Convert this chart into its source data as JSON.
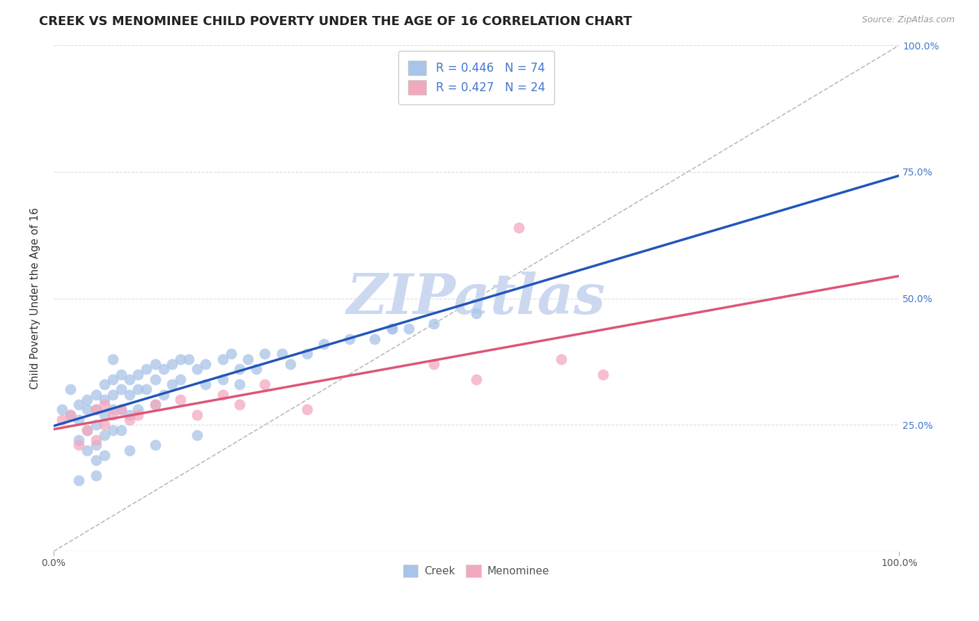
{
  "title": "CREEK VS MENOMINEE CHILD POVERTY UNDER THE AGE OF 16 CORRELATION CHART",
  "source": "Source: ZipAtlas.com",
  "ylabel": "Child Poverty Under the Age of 16",
  "creek_R": 0.446,
  "creek_N": 74,
  "menominee_R": 0.427,
  "menominee_N": 24,
  "creek_color": "#a8c4e8",
  "menominee_color": "#f4a8be",
  "creek_line_color": "#2255bb",
  "menominee_line_color": "#dd5577",
  "diagonal_color": "#aaaaaa",
  "background_color": "#ffffff",
  "grid_color": "#dddddd",
  "ytick_color": "#4477cc",
  "xtick_color": "#555555",
  "title_color": "#222222",
  "ylabel_color": "#333333",
  "watermark": "ZIPatlas",
  "watermark_color": "#ccd8f0",
  "creek_x": [
    0.01,
    0.02,
    0.02,
    0.03,
    0.03,
    0.03,
    0.04,
    0.04,
    0.04,
    0.04,
    0.05,
    0.05,
    0.05,
    0.05,
    0.05,
    0.06,
    0.06,
    0.06,
    0.06,
    0.06,
    0.07,
    0.07,
    0.07,
    0.07,
    0.08,
    0.08,
    0.08,
    0.08,
    0.09,
    0.09,
    0.09,
    0.1,
    0.1,
    0.1,
    0.11,
    0.11,
    0.12,
    0.12,
    0.12,
    0.13,
    0.13,
    0.14,
    0.14,
    0.15,
    0.15,
    0.16,
    0.17,
    0.18,
    0.18,
    0.2,
    0.2,
    0.21,
    0.22,
    0.23,
    0.24,
    0.25,
    0.27,
    0.28,
    0.3,
    0.32,
    0.35,
    0.38,
    0.4,
    0.42,
    0.45,
    0.5,
    0.03,
    0.05,
    0.07,
    0.09,
    0.12,
    0.17,
    0.22,
    0.4
  ],
  "creek_y": [
    0.28,
    0.32,
    0.27,
    0.29,
    0.26,
    0.22,
    0.3,
    0.28,
    0.24,
    0.2,
    0.31,
    0.28,
    0.25,
    0.21,
    0.18,
    0.33,
    0.3,
    0.27,
    0.23,
    0.19,
    0.34,
    0.31,
    0.28,
    0.24,
    0.35,
    0.32,
    0.28,
    0.24,
    0.34,
    0.31,
    0.27,
    0.35,
    0.32,
    0.28,
    0.36,
    0.32,
    0.37,
    0.34,
    0.29,
    0.36,
    0.31,
    0.37,
    0.33,
    0.38,
    0.34,
    0.38,
    0.36,
    0.37,
    0.33,
    0.38,
    0.34,
    0.39,
    0.36,
    0.38,
    0.36,
    0.39,
    0.39,
    0.37,
    0.39,
    0.41,
    0.42,
    0.42,
    0.44,
    0.44,
    0.45,
    0.47,
    0.14,
    0.15,
    0.38,
    0.2,
    0.21,
    0.23,
    0.33,
    0.44
  ],
  "menominee_x": [
    0.01,
    0.02,
    0.03,
    0.04,
    0.05,
    0.05,
    0.06,
    0.06,
    0.07,
    0.08,
    0.09,
    0.1,
    0.12,
    0.15,
    0.17,
    0.2,
    0.22,
    0.25,
    0.3,
    0.45,
    0.5,
    0.6,
    0.65,
    0.55
  ],
  "menominee_y": [
    0.26,
    0.27,
    0.21,
    0.24,
    0.28,
    0.22,
    0.29,
    0.25,
    0.27,
    0.28,
    0.26,
    0.27,
    0.29,
    0.3,
    0.27,
    0.31,
    0.29,
    0.33,
    0.28,
    0.37,
    0.34,
    0.38,
    0.35,
    0.64
  ],
  "xlim": [
    0.0,
    1.0
  ],
  "ylim": [
    0.0,
    1.0
  ],
  "xticks": [
    0.0,
    1.0
  ],
  "yticks": [
    0.0,
    0.25,
    0.5,
    0.75,
    1.0
  ],
  "xtick_labels": [
    "0.0%",
    "100.0%"
  ],
  "ytick_right_labels": [
    "",
    "25.0%",
    "50.0%",
    "75.0%",
    "100.0%"
  ],
  "title_fontsize": 13,
  "axis_label_fontsize": 11,
  "tick_fontsize": 10,
  "legend_fontsize": 12
}
